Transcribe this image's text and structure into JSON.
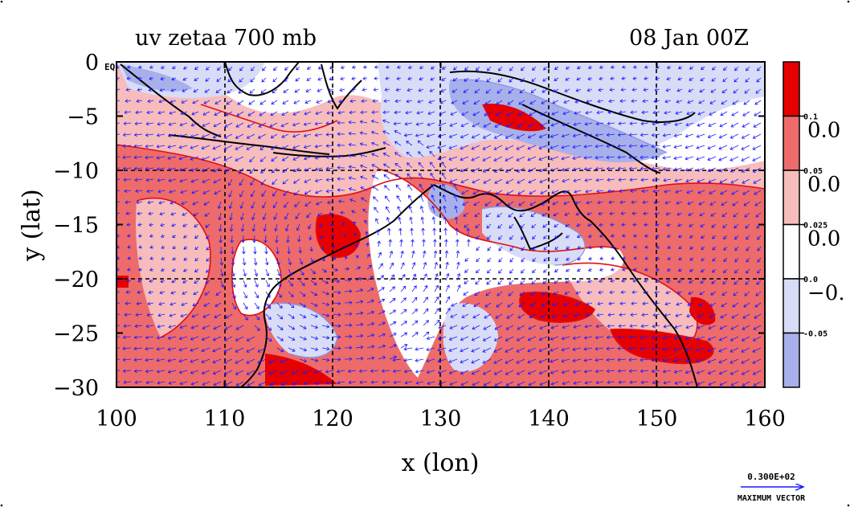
{
  "header": {
    "title_left": "uv zetaa 700 mb",
    "title_right": "08 Jan 00Z"
  },
  "axes": {
    "xlabel": "x (lon)",
    "ylabel": "y (lat)",
    "x_ticks": [
      "100",
      "110",
      "120",
      "130",
      "140",
      "150",
      "160"
    ],
    "x_values": [
      100,
      110,
      120,
      130,
      140,
      150,
      160
    ],
    "y_ticks": [
      "0",
      "−5",
      "−10",
      "−15",
      "−20",
      "−25",
      "−30"
    ],
    "y_values": [
      0,
      -5,
      -10,
      -15,
      -20,
      -25,
      -30
    ],
    "xlim": [
      100,
      160
    ],
    "ylim": [
      -30,
      0
    ],
    "corner_label": "EQ"
  },
  "colorbar": {
    "bands": [
      {
        "color": "#e60000"
      },
      {
        "color": "#ee6b6b"
      },
      {
        "color": "#f7bcbc"
      },
      {
        "color": "#ffffff"
      },
      {
        "color": "#d8dcf6"
      },
      {
        "color": "#a8b0ec"
      }
    ],
    "small_labels": [
      "0.1",
      "0.05",
      "0.025",
      "0.0",
      "-0.05"
    ],
    "large_labels": [
      "0.0",
      "0.0",
      "0.0",
      "−0."
    ]
  },
  "vector_key": {
    "magnitude": "0.300E+02",
    "label": "MAXIMUM VECTOR"
  },
  "colors": {
    "strong_pos": "#e60000",
    "pos": "#ee6b6b",
    "weak_pos": "#f7bcbc",
    "neutral": "#ffffff",
    "weak_neg": "#d8dcf6",
    "neg": "#a8b0ec",
    "vector": "#1a1aff",
    "contour": "#e01010",
    "coast": "#000000"
  }
}
